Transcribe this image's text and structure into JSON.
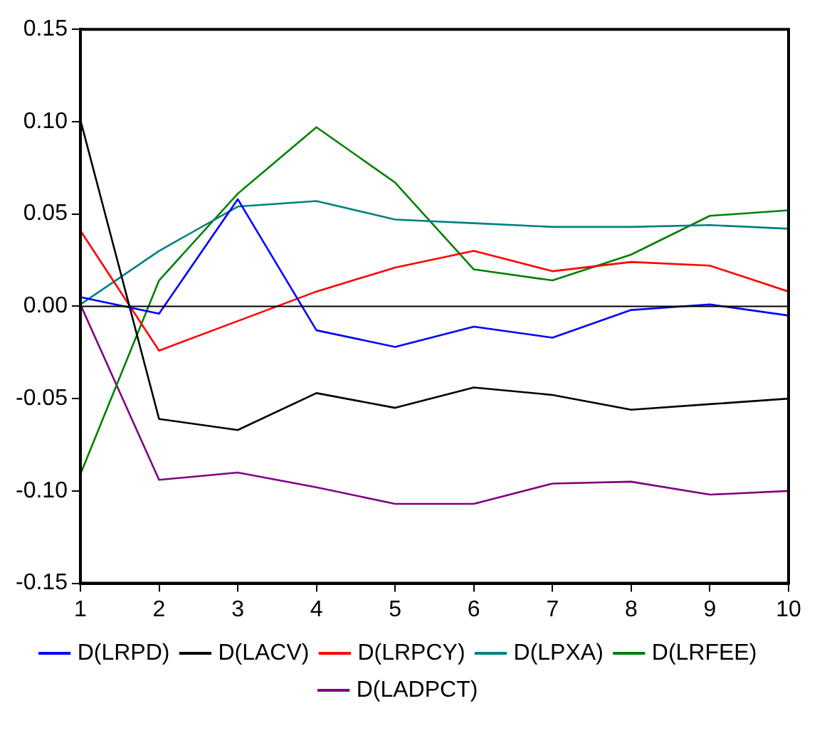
{
  "chart_data": {
    "type": "line",
    "x": [
      1,
      2,
      3,
      4,
      5,
      6,
      7,
      8,
      9,
      10
    ],
    "xlim": [
      1,
      10
    ],
    "xticks": [
      1,
      2,
      3,
      4,
      5,
      6,
      7,
      8,
      9,
      10
    ],
    "ylim": [
      -0.15,
      0.15
    ],
    "yticks": [
      {
        "value": -0.15,
        "label": "-0.15"
      },
      {
        "value": -0.1,
        "label": "-0.10"
      },
      {
        "value": -0.05,
        "label": "-0.05"
      },
      {
        "value": 0,
        "label": "0.00"
      },
      {
        "value": 0.05,
        "label": "0.05"
      },
      {
        "value": 0.1,
        "label": "0.10"
      },
      {
        "value": 0.15,
        "label": "0.15"
      }
    ],
    "grid": false,
    "legend": "bottom",
    "marker": "none",
    "line_style": "solid",
    "ref_lines": [
      {
        "axis": "y",
        "value": 0,
        "color": "#000000"
      }
    ],
    "series": [
      {
        "name": "D(LRPD)",
        "color": "#0000ff",
        "values": [
          0.005,
          -0.004,
          0.058,
          -0.013,
          -0.022,
          -0.011,
          -0.017,
          -0.002,
          0.001,
          -0.005
        ]
      },
      {
        "name": "D(LACV)",
        "color": "#000000",
        "values": [
          0.101,
          -0.061,
          -0.067,
          -0.047,
          -0.055,
          -0.044,
          -0.048,
          -0.056,
          -0.053,
          -0.05
        ]
      },
      {
        "name": "D(LRPCY)",
        "color": "#ff0000",
        "values": [
          0.041,
          -0.024,
          -0.008,
          0.008,
          0.021,
          0.03,
          0.019,
          0.024,
          0.022,
          0.008
        ]
      },
      {
        "name": "D(LPXA)",
        "color": "#008080",
        "values": [
          0.001,
          0.03,
          0.054,
          0.057,
          0.047,
          0.045,
          0.043,
          0.043,
          0.044,
          0.042
        ]
      },
      {
        "name": "D(LRFEE)",
        "color": "#008000",
        "values": [
          -0.091,
          0.014,
          0.061,
          0.097,
          0.067,
          0.02,
          0.014,
          0.028,
          0.049,
          0.052
        ]
      },
      {
        "name": "D(LADPCT)",
        "color": "#800080",
        "values": [
          0.001,
          -0.094,
          -0.09,
          -0.098,
          -0.107,
          -0.107,
          -0.096,
          -0.095,
          -0.102,
          -0.1
        ]
      }
    ]
  }
}
